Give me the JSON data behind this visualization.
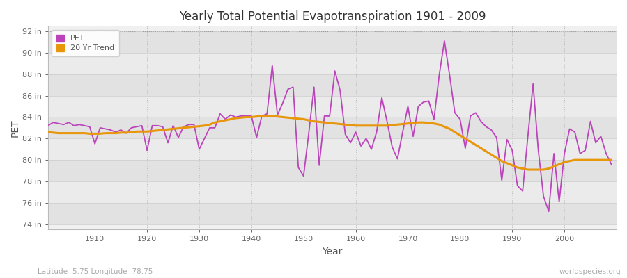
{
  "title": "Yearly Total Potential Evapotranspiration 1901 - 2009",
  "xlabel": "Year",
  "ylabel": "PET",
  "subtitle_left": "Latitude -5.75 Longitude -78.75",
  "subtitle_right": "worldspecies.org",
  "pet_color": "#bb44bb",
  "trend_color": "#e8960c",
  "bg_color": "#ffffff",
  "plot_bg_color": "#f0f0f0",
  "band_color_dark": "#e2e2e2",
  "band_color_light": "#ebebeb",
  "ylim": [
    73.5,
    92.5
  ],
  "yticks": [
    74,
    76,
    78,
    80,
    82,
    84,
    86,
    88,
    90,
    92
  ],
  "ytick_labels": [
    "74 in",
    "76 in",
    "78 in",
    "80 in",
    "82 in",
    "84 in",
    "86 in",
    "88 in",
    "90 in",
    "92 in"
  ],
  "xlim_min": 1901,
  "xlim_max": 2010,
  "xticks": [
    1910,
    1920,
    1930,
    1940,
    1950,
    1960,
    1970,
    1980,
    1990,
    2000
  ],
  "years": [
    1901,
    1902,
    1903,
    1904,
    1905,
    1906,
    1907,
    1908,
    1909,
    1910,
    1911,
    1912,
    1913,
    1914,
    1915,
    1916,
    1917,
    1918,
    1919,
    1920,
    1921,
    1922,
    1923,
    1924,
    1925,
    1926,
    1927,
    1928,
    1929,
    1930,
    1931,
    1932,
    1933,
    1934,
    1935,
    1936,
    1937,
    1938,
    1939,
    1940,
    1941,
    1942,
    1943,
    1944,
    1945,
    1946,
    1947,
    1948,
    1949,
    1950,
    1951,
    1952,
    1953,
    1954,
    1955,
    1956,
    1957,
    1958,
    1959,
    1960,
    1961,
    1962,
    1963,
    1964,
    1965,
    1966,
    1967,
    1968,
    1969,
    1970,
    1971,
    1972,
    1973,
    1974,
    1975,
    1976,
    1977,
    1978,
    1979,
    1980,
    1981,
    1982,
    1983,
    1984,
    1985,
    1986,
    1987,
    1988,
    1989,
    1990,
    1991,
    1992,
    1993,
    1994,
    1995,
    1996,
    1997,
    1998,
    1999,
    2000,
    2001,
    2002,
    2003,
    2004,
    2005,
    2006,
    2007,
    2008,
    2009
  ],
  "pet_values": [
    83.2,
    83.5,
    83.4,
    83.3,
    83.5,
    83.2,
    83.3,
    83.2,
    83.1,
    81.5,
    83.0,
    82.9,
    82.8,
    82.6,
    82.8,
    82.5,
    83.0,
    83.1,
    83.2,
    80.9,
    83.2,
    83.2,
    83.1,
    81.6,
    83.2,
    82.1,
    83.1,
    83.3,
    83.3,
    81.0,
    82.0,
    83.0,
    83.0,
    84.3,
    83.8,
    84.2,
    84.0,
    84.1,
    84.1,
    84.1,
    82.1,
    84.1,
    84.3,
    88.8,
    84.2,
    85.3,
    86.6,
    86.8,
    79.3,
    78.5,
    82.5,
    86.8,
    79.5,
    84.1,
    84.1,
    88.3,
    86.5,
    82.4,
    81.6,
    82.6,
    81.3,
    82.0,
    81.0,
    82.6,
    85.8,
    83.6,
    81.2,
    80.1,
    82.6,
    85.0,
    82.2,
    85.0,
    85.4,
    85.5,
    83.8,
    87.9,
    91.1,
    87.9,
    84.4,
    83.8,
    81.1,
    84.1,
    84.4,
    83.6,
    83.1,
    82.8,
    82.1,
    78.1,
    81.9,
    80.9,
    77.6,
    77.1,
    82.2,
    87.1,
    80.9,
    76.6,
    75.2,
    80.6,
    76.1,
    80.6,
    82.9,
    82.6,
    80.6,
    80.9,
    83.6,
    81.6,
    82.2,
    80.6,
    79.6
  ],
  "trend_values": [
    82.6,
    82.55,
    82.5,
    82.5,
    82.5,
    82.5,
    82.5,
    82.5,
    82.45,
    82.45,
    82.45,
    82.5,
    82.5,
    82.5,
    82.55,
    82.55,
    82.6,
    82.65,
    82.65,
    82.65,
    82.7,
    82.75,
    82.8,
    82.85,
    82.9,
    82.95,
    83.0,
    83.05,
    83.1,
    83.15,
    83.2,
    83.3,
    83.5,
    83.6,
    83.7,
    83.8,
    83.9,
    83.95,
    84.0,
    84.0,
    84.05,
    84.1,
    84.1,
    84.1,
    84.05,
    84.0,
    83.95,
    83.9,
    83.85,
    83.8,
    83.7,
    83.6,
    83.55,
    83.5,
    83.45,
    83.4,
    83.35,
    83.3,
    83.25,
    83.2,
    83.2,
    83.2,
    83.2,
    83.2,
    83.2,
    83.2,
    83.25,
    83.3,
    83.35,
    83.4,
    83.45,
    83.5,
    83.5,
    83.45,
    83.4,
    83.3,
    83.1,
    82.9,
    82.6,
    82.3,
    82.0,
    81.7,
    81.4,
    81.1,
    80.8,
    80.5,
    80.2,
    79.9,
    79.7,
    79.5,
    79.3,
    79.2,
    79.1,
    79.1,
    79.1,
    79.1,
    79.2,
    79.4,
    79.6,
    79.8,
    79.9,
    80.0,
    80.0,
    80.0,
    80.0,
    80.0,
    80.0,
    80.0,
    80.0
  ]
}
